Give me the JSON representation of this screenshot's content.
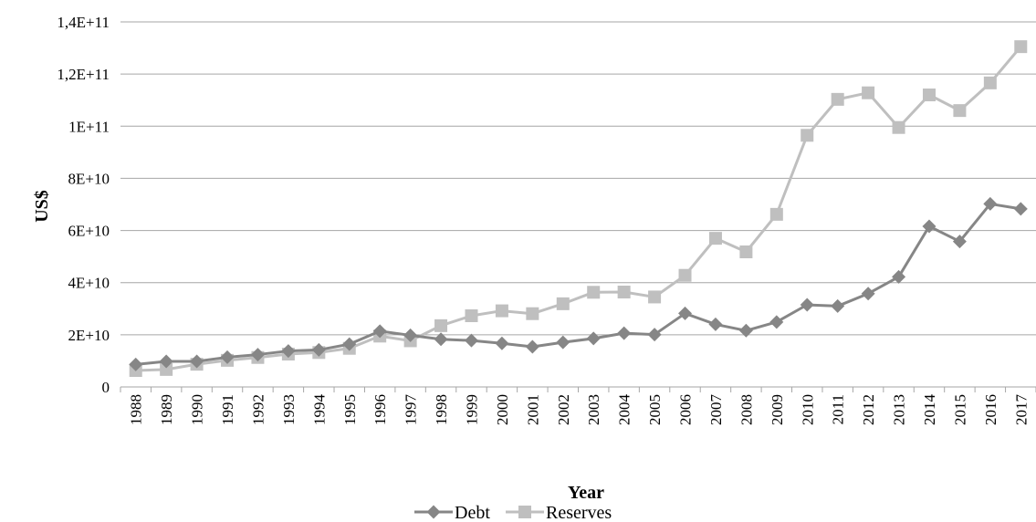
{
  "chart_data": {
    "type": "line",
    "title": "",
    "xlabel": "Year",
    "ylabel": "US$",
    "ylim": [
      0,
      140000000000
    ],
    "yticks": [
      0,
      20000000000,
      40000000000,
      60000000000,
      80000000000,
      100000000000,
      120000000000,
      140000000000
    ],
    "ytick_labels": [
      "0",
      "2E+10",
      "4E+10",
      "6E+10",
      "8E+10",
      "1E+11",
      "1,2E+11",
      "1,4E+11"
    ],
    "grid": true,
    "legend_position": "bottom",
    "x": [
      "1988",
      "1989",
      "1990",
      "1991",
      "1992",
      "1993",
      "1994",
      "1995",
      "1996",
      "1997",
      "1998",
      "1999",
      "2000",
      "2001",
      "2002",
      "2003",
      "2004",
      "2005",
      "2006",
      "2007",
      "2008",
      "2009",
      "2010",
      "2011",
      "2012",
      "2013",
      "2014",
      "2015",
      "2016",
      "2017"
    ],
    "series": [
      {
        "name": "Debt",
        "color": "#868686",
        "marker": "diamond",
        "values": [
          8600000000,
          9800000000,
          9800000000,
          11400000000,
          12400000000,
          13800000000,
          14200000000,
          16400000000,
          21400000000,
          19800000000,
          18300000000,
          17800000000,
          16700000000,
          15400000000,
          17100000000,
          18600000000,
          20600000000,
          20100000000,
          28200000000,
          24000000000,
          21600000000,
          24900000000,
          31500000000,
          31000000000,
          35800000000,
          42200000000,
          61600000000,
          55800000000,
          70200000000,
          68300000000
        ]
      },
      {
        "name": "Reserves",
        "color": "#bfbfbf",
        "marker": "square",
        "values": [
          6300000000,
          6700000000,
          8700000000,
          10200000000,
          11300000000,
          12600000000,
          13200000000,
          14800000000,
          19500000000,
          17700000000,
          23500000000,
          27300000000,
          29200000000,
          28100000000,
          31900000000,
          36300000000,
          36400000000,
          34500000000,
          42800000000,
          57000000000,
          51800000000,
          66200000000,
          96500000000,
          110300000000,
          112800000000,
          99500000000,
          112000000000,
          106000000000,
          116600000000,
          130500000000
        ]
      }
    ]
  }
}
